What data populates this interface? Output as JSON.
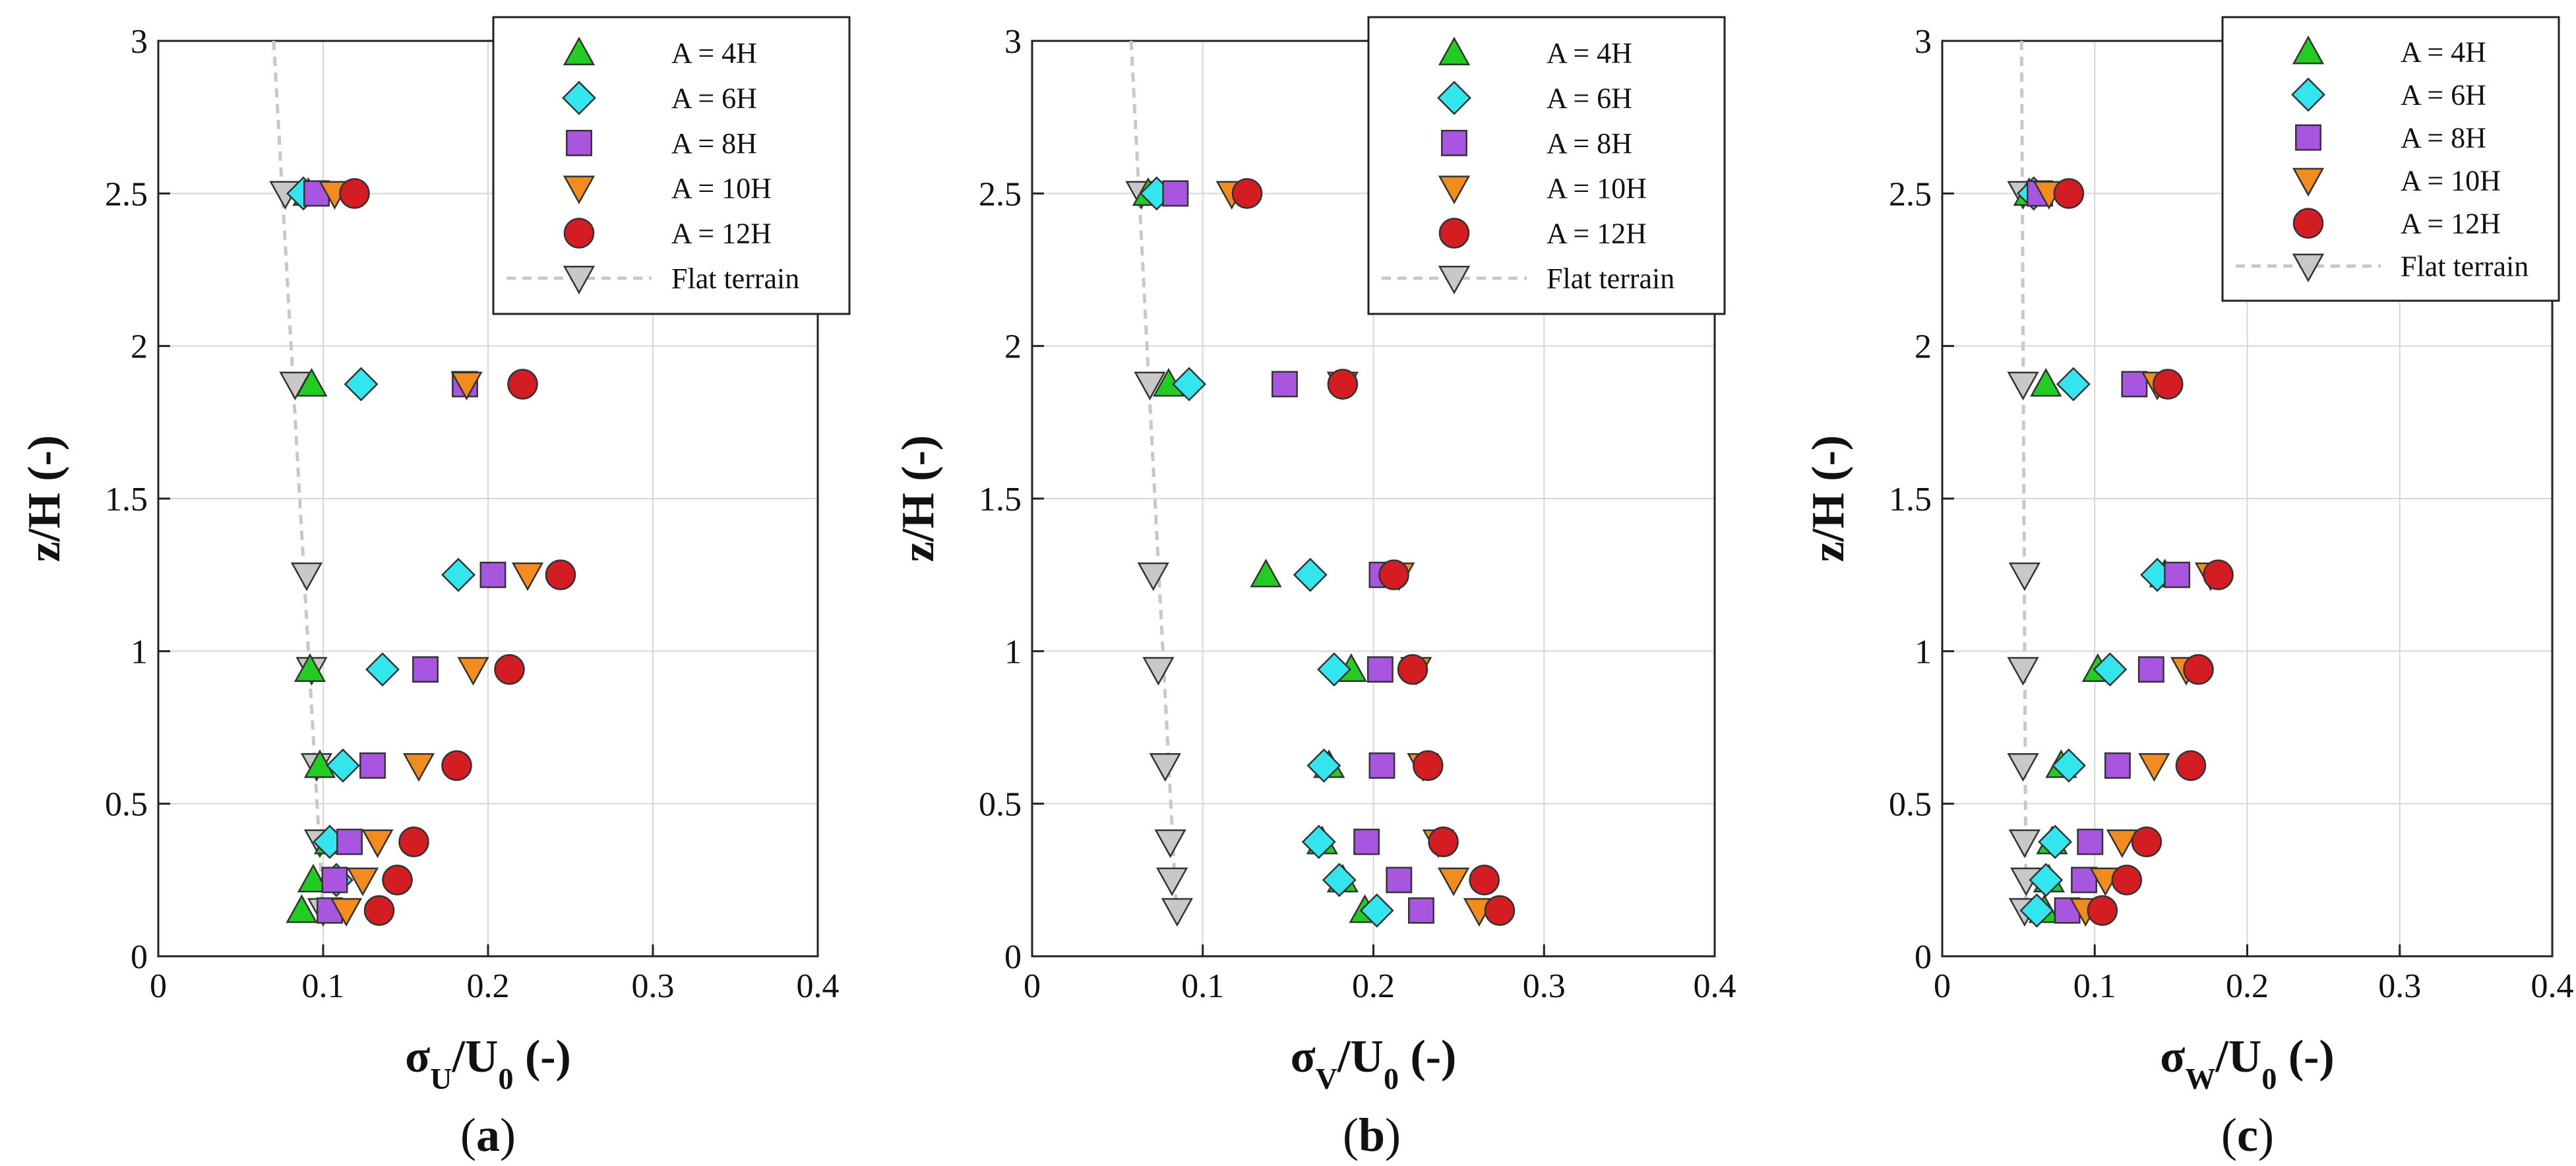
{
  "chart_data": [
    {
      "type": "scatter",
      "panel_label": "(a)",
      "panel_letter": "a",
      "xlabel": {
        "base": "σ",
        "sub": "U",
        "mid": "/U",
        "sub2": "0",
        "end": " (-)"
      },
      "ylabel": "z/H (-)",
      "xlim": [
        0,
        0.4
      ],
      "ylim": [
        0,
        3
      ],
      "xticks": [
        "0",
        "0.1",
        "0.2",
        "0.3",
        "0.4"
      ],
      "yticks": [
        "0",
        "0.5",
        "1",
        "1.5",
        "2",
        "2.5",
        "3"
      ],
      "grid": true,
      "legend_position": "top-right",
      "flat_terrain_line": {
        "x": [
          0.07,
          0.1
        ],
        "y": [
          3.0,
          0.15
        ]
      },
      "series": [
        {
          "name": "A = 4H",
          "marker": "triangle-up",
          "color": "#22cc22",
          "x": [
            0.091,
            0.093,
            0.092,
            0.098,
            0.104,
            0.094,
            0.087
          ],
          "y": [
            2.5,
            1.875,
            0.94,
            0.625,
            0.375,
            0.25,
            0.15
          ]
        },
        {
          "name": "A = 6H",
          "marker": "diamond",
          "color": "#33e6ee",
          "x": [
            0.088,
            0.123,
            0.182,
            0.136,
            0.112,
            0.104,
            0.108
          ],
          "y": [
            2.5,
            1.875,
            1.25,
            0.94,
            0.625,
            0.375,
            0.25
          ]
        },
        {
          "name": "A = 8H",
          "marker": "square",
          "color": "#a855e0",
          "x": [
            0.096,
            0.186,
            0.203,
            0.162,
            0.13,
            0.116,
            0.107,
            0.104
          ],
          "y": [
            2.5,
            1.875,
            1.25,
            0.94,
            0.625,
            0.375,
            0.25,
            0.15
          ]
        },
        {
          "name": "A = 10H",
          "marker": "triangle-down",
          "color": "#f28c1e",
          "x": [
            0.107,
            0.187,
            0.224,
            0.191,
            0.158,
            0.133,
            0.124,
            0.114
          ],
          "y": [
            2.5,
            1.875,
            1.25,
            0.94,
            0.625,
            0.375,
            0.25,
            0.15
          ]
        },
        {
          "name": "A = 12H",
          "marker": "circle",
          "color": "#d31d22",
          "x": [
            0.119,
            0.221,
            0.244,
            0.213,
            0.181,
            0.155,
            0.145,
            0.134
          ],
          "y": [
            2.5,
            1.875,
            1.25,
            0.94,
            0.625,
            0.375,
            0.25,
            0.15
          ]
        },
        {
          "name": "Flat terrain",
          "marker": "triangle-down",
          "color": "#c8c8c8",
          "x": [
            0.077,
            0.083,
            0.09,
            0.093,
            0.096,
            0.098,
            0.1
          ],
          "y": [
            2.5,
            1.875,
            1.25,
            0.94,
            0.625,
            0.375,
            0.15
          ]
        }
      ]
    },
    {
      "type": "scatter",
      "panel_label": "(b)",
      "panel_letter": "b",
      "xlabel": {
        "base": "σ",
        "sub": "V",
        "mid": "/U",
        "sub2": "0",
        "end": " (-)"
      },
      "ylabel": "z/H (-)",
      "xlim": [
        0,
        0.4
      ],
      "ylim": [
        0,
        3
      ],
      "xticks": [
        "0",
        "0.1",
        "0.2",
        "0.3",
        "0.4"
      ],
      "yticks": [
        "0",
        "0.5",
        "1",
        "1.5",
        "2",
        "2.5",
        "3"
      ],
      "grid": true,
      "legend_position": "top-right",
      "flat_terrain_line": {
        "x": [
          0.058,
          0.085
        ],
        "y": [
          3.0,
          0.1
        ]
      },
      "series": [
        {
          "name": "A = 4H",
          "marker": "triangle-up",
          "color": "#22cc22",
          "x": [
            0.068,
            0.08,
            0.137,
            0.187,
            0.174,
            0.17,
            0.182,
            0.195
          ],
          "y": [
            2.5,
            1.875,
            1.25,
            0.94,
            0.625,
            0.375,
            0.25,
            0.15
          ]
        },
        {
          "name": "A = 6H",
          "marker": "diamond",
          "color": "#33e6ee",
          "x": [
            0.073,
            0.092,
            0.163,
            0.177,
            0.171,
            0.168,
            0.18,
            0.202
          ],
          "y": [
            2.5,
            1.875,
            1.25,
            0.94,
            0.625,
            0.375,
            0.25,
            0.15
          ]
        },
        {
          "name": "A = 8H",
          "marker": "square",
          "color": "#a855e0",
          "x": [
            0.084,
            0.148,
            0.205,
            0.204,
            0.205,
            0.196,
            0.215,
            0.228
          ],
          "y": [
            2.5,
            1.875,
            1.25,
            0.94,
            0.625,
            0.375,
            0.25,
            0.15
          ]
        },
        {
          "name": "A = 10H",
          "marker": "triangle-down",
          "color": "#f28c1e",
          "x": [
            0.117,
            0.182,
            0.215,
            0.225,
            0.229,
            0.238,
            0.247,
            0.262
          ],
          "y": [
            2.5,
            1.875,
            1.25,
            0.94,
            0.625,
            0.375,
            0.25,
            0.15
          ]
        },
        {
          "name": "A = 12H",
          "marker": "circle",
          "color": "#d31d22",
          "x": [
            0.126,
            0.182,
            0.212,
            0.223,
            0.232,
            0.241,
            0.265,
            0.274
          ],
          "y": [
            2.5,
            1.875,
            1.25,
            0.94,
            0.625,
            0.375,
            0.25,
            0.15
          ]
        },
        {
          "name": "Flat terrain",
          "marker": "triangle-down",
          "color": "#c8c8c8",
          "x": [
            0.064,
            0.069,
            0.071,
            0.074,
            0.078,
            0.081,
            0.082,
            0.085
          ],
          "y": [
            2.5,
            1.875,
            1.25,
            0.94,
            0.625,
            0.375,
            0.25,
            0.15
          ]
        }
      ]
    },
    {
      "type": "scatter",
      "panel_label": "(c)",
      "panel_letter": "c",
      "xlabel": {
        "base": "σ",
        "sub": "W",
        "mid": "/U",
        "sub2": "0",
        "end": " (-)"
      },
      "ylabel": "z/H (-)",
      "xlim": [
        0,
        0.4
      ],
      "ylim": [
        0,
        3
      ],
      "xticks": [
        "0",
        "0.1",
        "0.2",
        "0.3",
        "0.4"
      ],
      "yticks": [
        "0",
        "0.5",
        "1",
        "1.5",
        "2",
        "2.5",
        "3"
      ],
      "grid": true,
      "legend_position": "top-right",
      "flat_terrain_line": {
        "x": [
          0.052,
          0.055
        ],
        "y": [
          3.0,
          0.1
        ]
      },
      "series": [
        {
          "name": "A = 4H",
          "marker": "triangle-up",
          "color": "#22cc22",
          "x": [
            0.057,
            0.068,
            0.146,
            0.102,
            0.078,
            0.072,
            0.07,
            0.067
          ],
          "y": [
            2.5,
            1.875,
            1.25,
            0.94,
            0.625,
            0.375,
            0.25,
            0.15
          ]
        },
        {
          "name": "A = 6H",
          "marker": "diamond",
          "color": "#33e6ee",
          "x": [
            0.06,
            0.086,
            0.141,
            0.11,
            0.083,
            0.074,
            0.068,
            0.062
          ],
          "y": [
            2.5,
            1.875,
            1.25,
            0.94,
            0.625,
            0.375,
            0.25,
            0.15
          ]
        },
        {
          "name": "A = 8H",
          "marker": "square",
          "color": "#a855e0",
          "x": [
            0.064,
            0.126,
            0.154,
            0.137,
            0.115,
            0.097,
            0.093,
            0.082
          ],
          "y": [
            2.5,
            1.875,
            1.25,
            0.94,
            0.625,
            0.375,
            0.25,
            0.15
          ]
        },
        {
          "name": "A = 10H",
          "marker": "triangle-down",
          "color": "#f28c1e",
          "x": [
            0.07,
            0.141,
            0.176,
            0.16,
            0.139,
            0.118,
            0.107,
            0.094
          ],
          "y": [
            2.5,
            1.875,
            1.25,
            0.94,
            0.625,
            0.375,
            0.25,
            0.15
          ]
        },
        {
          "name": "A = 12H",
          "marker": "circle",
          "color": "#d31d22",
          "x": [
            0.083,
            0.148,
            0.181,
            0.168,
            0.163,
            0.134,
            0.121,
            0.105
          ],
          "y": [
            2.5,
            1.875,
            1.25,
            0.94,
            0.625,
            0.375,
            0.25,
            0.15
          ]
        },
        {
          "name": "Flat terrain",
          "marker": "triangle-down",
          "color": "#c8c8c8",
          "x": [
            0.053,
            0.053,
            0.054,
            0.053,
            0.053,
            0.054,
            0.055,
            0.054
          ],
          "y": [
            2.5,
            1.875,
            1.25,
            0.94,
            0.625,
            0.375,
            0.25,
            0.15
          ]
        }
      ]
    }
  ]
}
